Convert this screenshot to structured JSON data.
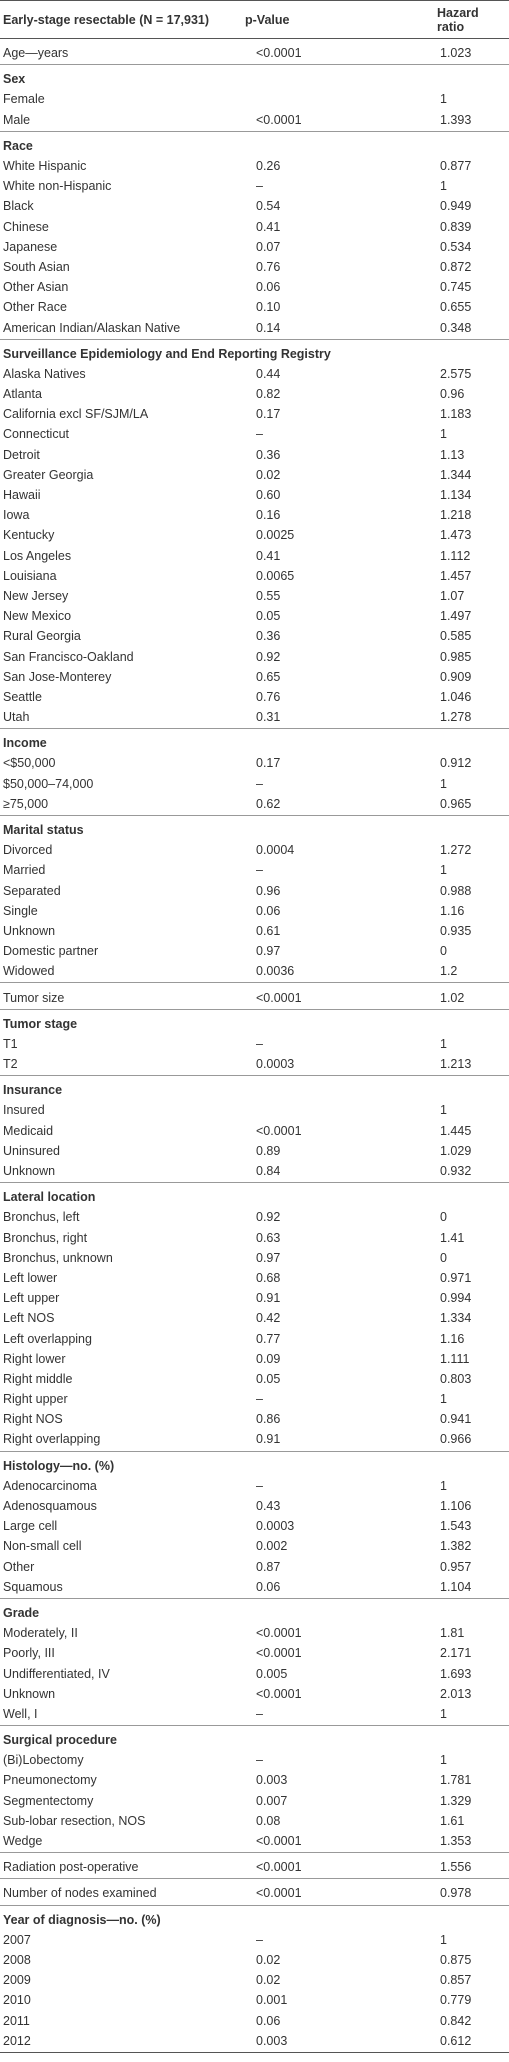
{
  "table": {
    "header": [
      "Early-stage resectable (N = 17,931)",
      "p-Value",
      "Hazard ratio"
    ],
    "sections": [
      {
        "rows": [
          [
            "Age—years",
            "<0.0001",
            "1.023"
          ]
        ]
      },
      {
        "heading": "Sex",
        "rows": [
          [
            "Female",
            null,
            "1"
          ],
          [
            "Male",
            "<0.0001",
            "1.393"
          ]
        ]
      },
      {
        "heading": "Race",
        "rows": [
          [
            "White Hispanic",
            "0.26",
            "0.877"
          ],
          [
            "White non-Hispanic",
            "–",
            "1"
          ],
          [
            "Black",
            "0.54",
            "0.949"
          ],
          [
            "Chinese",
            "0.41",
            "0.839"
          ],
          [
            "Japanese",
            "0.07",
            "0.534"
          ],
          [
            "South Asian",
            "0.76",
            "0.872"
          ],
          [
            "Other Asian",
            "0.06",
            "0.745"
          ],
          [
            "Other Race",
            "0.10",
            "0.655"
          ],
          [
            "American Indian/Alaskan Native",
            "0.14",
            "0.348"
          ]
        ]
      },
      {
        "heading": "Surveillance Epidemiology and End Reporting Registry",
        "rows": [
          [
            "Alaska Natives",
            "0.44",
            "2.575"
          ],
          [
            "Atlanta",
            "0.82",
            "0.96"
          ],
          [
            "California excl SF/SJM/LA",
            "0.17",
            "1.183"
          ],
          [
            "Connecticut",
            "–",
            "1"
          ],
          [
            "Detroit",
            "0.36",
            "1.13"
          ],
          [
            "Greater Georgia",
            "0.02",
            "1.344"
          ],
          [
            "Hawaii",
            "0.60",
            "1.134"
          ],
          [
            "Iowa",
            "0.16",
            "1.218"
          ],
          [
            "Kentucky",
            "0.0025",
            "1.473"
          ],
          [
            "Los Angeles",
            "0.41",
            "1.112"
          ],
          [
            "Louisiana",
            "0.0065",
            "1.457"
          ],
          [
            "New Jersey",
            "0.55",
            "1.07"
          ],
          [
            "New Mexico",
            "0.05",
            "1.497"
          ],
          [
            "Rural Georgia",
            "0.36",
            "0.585"
          ],
          [
            "San Francisco-Oakland",
            "0.92",
            "0.985"
          ],
          [
            "San Jose-Monterey",
            "0.65",
            "0.909"
          ],
          [
            "Seattle",
            "0.76",
            "1.046"
          ],
          [
            "Utah",
            "0.31",
            "1.278"
          ]
        ]
      },
      {
        "heading": "Income",
        "rows": [
          [
            "<$50,000",
            "0.17",
            "0.912"
          ],
          [
            "$50,000–74,000",
            "–",
            "1"
          ],
          [
            "≥75,000",
            "0.62",
            "0.965"
          ]
        ]
      },
      {
        "heading": "Marital status",
        "rows": [
          [
            "Divorced",
            "0.0004",
            "1.272"
          ],
          [
            "Married",
            "–",
            "1"
          ],
          [
            "Separated",
            "0.96",
            "0.988"
          ],
          [
            "Single",
            "0.06",
            "1.16"
          ],
          [
            "Unknown",
            "0.61",
            "0.935"
          ],
          [
            "Domestic partner",
            "0.97",
            "0"
          ],
          [
            "Widowed",
            "0.0036",
            "1.2"
          ]
        ]
      },
      {
        "rows": [
          [
            "Tumor size",
            "<0.0001",
            "1.02"
          ]
        ]
      },
      {
        "heading": "Tumor stage",
        "rows": [
          [
            "T1",
            "–",
            "1"
          ],
          [
            "T2",
            "0.0003",
            "1.213"
          ]
        ]
      },
      {
        "heading": "Insurance",
        "rows": [
          [
            "Insured",
            null,
            "1"
          ],
          [
            "Medicaid",
            "<0.0001",
            "1.445"
          ],
          [
            "Uninsured",
            "0.89",
            "1.029"
          ],
          [
            "Unknown",
            "0.84",
            "0.932"
          ]
        ]
      },
      {
        "heading": "Lateral location",
        "rows": [
          [
            "Bronchus, left",
            "0.92",
            "0"
          ],
          [
            "Bronchus, right",
            "0.63",
            "1.41"
          ],
          [
            "Bronchus, unknown",
            "0.97",
            "0"
          ],
          [
            "Left lower",
            "0.68",
            "0.971"
          ],
          [
            "Left upper",
            "0.91",
            "0.994"
          ],
          [
            "Left NOS",
            "0.42",
            "1.334"
          ],
          [
            "Left overlapping",
            "0.77",
            "1.16"
          ],
          [
            "Right lower",
            "0.09",
            "1.111"
          ],
          [
            "Right middle",
            "0.05",
            "0.803"
          ],
          [
            "Right upper",
            "–",
            "1"
          ],
          [
            "Right NOS",
            "0.86",
            "0.941"
          ],
          [
            "Right overlapping",
            "0.91",
            "0.966"
          ]
        ]
      },
      {
        "heading": "Histology—no. (%)",
        "rows": [
          [
            "Adenocarcinoma",
            "–",
            "1"
          ],
          [
            "Adenosquamous",
            "0.43",
            "1.106"
          ],
          [
            "Large cell",
            "0.0003",
            "1.543"
          ],
          [
            "Non-small cell",
            "0.002",
            "1.382"
          ],
          [
            "Other",
            "0.87",
            "0.957"
          ],
          [
            "Squamous",
            "0.06",
            "1.104"
          ]
        ]
      },
      {
        "heading": "Grade",
        "rows": [
          [
            "Moderately, II",
            "<0.0001",
            "1.81"
          ],
          [
            "Poorly, III",
            "<0.0001",
            "2.171"
          ],
          [
            "Undifferentiated, IV",
            "0.005",
            "1.693"
          ],
          [
            "Unknown",
            "<0.0001",
            "2.013"
          ],
          [
            "Well, I",
            "–",
            "1"
          ]
        ]
      },
      {
        "heading": "Surgical procedure",
        "rows": [
          [
            "(Bi)Lobectomy",
            "–",
            "1"
          ],
          [
            "Pneumonectomy",
            "0.003",
            "1.781"
          ],
          [
            "Segmentectomy",
            "0.007",
            "1.329"
          ],
          [
            "Sub-lobar resection, NOS",
            "0.08",
            "1.61"
          ],
          [
            "Wedge",
            "<0.0001",
            "1.353"
          ]
        ]
      },
      {
        "rows": [
          [
            "Radiation post-operative",
            "<0.0001",
            "1.556"
          ]
        ]
      },
      {
        "rows": [
          [
            "Number of nodes examined",
            "<0.0001",
            "0.978"
          ]
        ]
      },
      {
        "heading": "Year of diagnosis—no. (%)",
        "rows": [
          [
            "2007",
            "–",
            "1"
          ],
          [
            "2008",
            "0.02",
            "0.875"
          ],
          [
            "2009",
            "0.02",
            "0.857"
          ],
          [
            "2010",
            "0.001",
            "0.779"
          ],
          [
            "2011",
            "0.06",
            "0.842"
          ],
          [
            "2012",
            "0.003",
            "0.612"
          ]
        ]
      }
    ]
  }
}
